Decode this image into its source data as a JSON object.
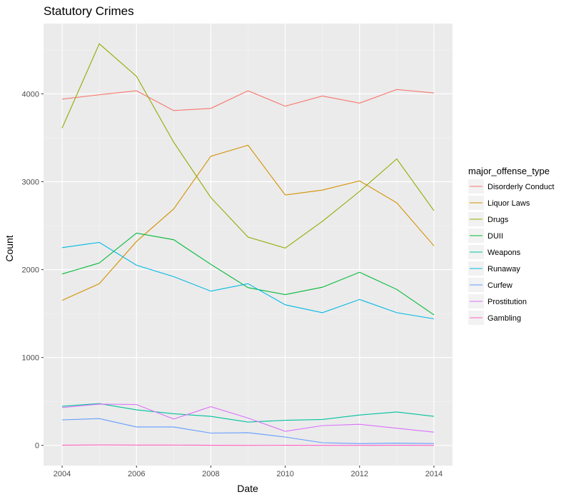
{
  "chart_data": {
    "type": "line",
    "title": "Statutory Crimes",
    "xlabel": "Date",
    "ylabel": "Count",
    "x": [
      2004,
      2005,
      2006,
      2007,
      2008,
      2009,
      2010,
      2011,
      2012,
      2013,
      2014
    ],
    "xlim": [
      2003.5,
      2014.5
    ],
    "ylim": [
      -230,
      4800
    ],
    "x_ticks": [
      2004,
      2006,
      2008,
      2010,
      2012,
      2014
    ],
    "y_ticks": [
      0,
      1000,
      2000,
      3000,
      4000
    ],
    "grid": true,
    "legend": {
      "title": "major_offense_type",
      "position": "right"
    },
    "series": [
      {
        "name": "Disorderly Conduct",
        "color": "#F8766D",
        "values": [
          3940,
          3990,
          4035,
          3810,
          3835,
          4035,
          3860,
          3975,
          3895,
          4050,
          4010
        ]
      },
      {
        "name": "Liquor Laws",
        "color": "#D39200",
        "values": [
          1650,
          1840,
          2320,
          2690,
          3290,
          3415,
          2850,
          2905,
          3010,
          2760,
          2270
        ]
      },
      {
        "name": "Drugs",
        "color": "#93AA00",
        "values": [
          3610,
          4570,
          4200,
          3450,
          2820,
          2370,
          2245,
          2550,
          2890,
          3260,
          2670
        ]
      },
      {
        "name": "DUII",
        "color": "#00BA38",
        "values": [
          1950,
          2075,
          2415,
          2340,
          2060,
          1795,
          1715,
          1800,
          1970,
          1775,
          1485
        ]
      },
      {
        "name": "Weapons",
        "color": "#00C19F",
        "values": [
          445,
          475,
          405,
          360,
          330,
          265,
          285,
          295,
          345,
          380,
          330
        ]
      },
      {
        "name": "Runaway",
        "color": "#00B9E3",
        "values": [
          2250,
          2310,
          2050,
          1920,
          1755,
          1840,
          1600,
          1510,
          1660,
          1510,
          1440
        ]
      },
      {
        "name": "Curfew",
        "color": "#619CFF",
        "values": [
          290,
          305,
          210,
          210,
          140,
          145,
          95,
          30,
          20,
          25,
          20
        ]
      },
      {
        "name": "Prostitution",
        "color": "#DB72FB",
        "values": [
          430,
          470,
          465,
          300,
          440,
          310,
          160,
          225,
          240,
          195,
          150
        ]
      },
      {
        "name": "Gambling",
        "color": "#FF61C3",
        "values": [
          2,
          5,
          3,
          3,
          1,
          0,
          1,
          0,
          0,
          1,
          0
        ]
      }
    ]
  }
}
